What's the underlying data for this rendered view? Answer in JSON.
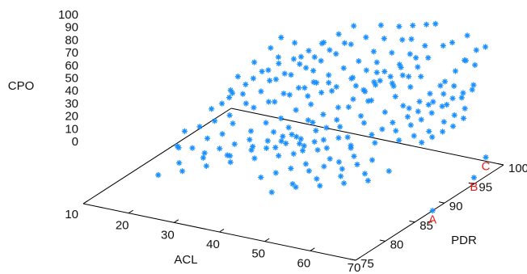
{
  "chart_data": {
    "type": "scatter",
    "title": "",
    "xlabel": "ACL",
    "ylabel": "PDR",
    "zlabel": "CPO",
    "xlim": [
      10,
      70
    ],
    "ylim": [
      75,
      100
    ],
    "zlim": [
      0,
      100
    ],
    "x_ticks": [
      "10",
      "20",
      "30",
      "40",
      "50",
      "60",
      "70"
    ],
    "y_ticks": [
      "75",
      "80",
      "85",
      "90",
      "95",
      "100"
    ],
    "z_ticks": [
      "0",
      "10",
      "20",
      "30",
      "40",
      "50",
      "60",
      "70",
      "80",
      "90",
      "100"
    ],
    "marker": "asterisk",
    "marker_color": "#1a8fff",
    "annotations": [
      {
        "text": "A",
        "color": "#e02020",
        "x": 70,
        "y": 88,
        "z": 0
      },
      {
        "text": "B",
        "color": "#e02020",
        "x": 70,
        "y": 95,
        "z": 5
      },
      {
        "text": "C",
        "color": "#e02020",
        "x": 70,
        "y": 97,
        "z": 15
      }
    ],
    "series": [
      {
        "points": [
          [
            18,
            85,
            20
          ],
          [
            18,
            86,
            30
          ],
          [
            19,
            84,
            25
          ],
          [
            20,
            87,
            32
          ],
          [
            20,
            89,
            40
          ],
          [
            21,
            85,
            22
          ],
          [
            21,
            90,
            42
          ],
          [
            22,
            88,
            35
          ],
          [
            22,
            91,
            48
          ],
          [
            23,
            86,
            28
          ],
          [
            23,
            92,
            45
          ],
          [
            24,
            89,
            38
          ],
          [
            24,
            93,
            55
          ],
          [
            25,
            87,
            30
          ],
          [
            25,
            91,
            42
          ],
          [
            26,
            94,
            60
          ],
          [
            26,
            88,
            36
          ],
          [
            27,
            92,
            50
          ],
          [
            27,
            95,
            63
          ],
          [
            28,
            90,
            44
          ],
          [
            28,
            86,
            18
          ],
          [
            29,
            93,
            58
          ],
          [
            29,
            96,
            65
          ],
          [
            30,
            91,
            47
          ],
          [
            30,
            88,
            33
          ],
          [
            31,
            94,
            60
          ],
          [
            31,
            97,
            70
          ],
          [
            32,
            92,
            52
          ],
          [
            32,
            89,
            38
          ],
          [
            33,
            95,
            64
          ],
          [
            33,
            98,
            75
          ],
          [
            34,
            93,
            55
          ],
          [
            34,
            90,
            40
          ],
          [
            35,
            96,
            68
          ],
          [
            35,
            99,
            80
          ],
          [
            36,
            94,
            58
          ],
          [
            36,
            91,
            45
          ],
          [
            37,
            97,
            72
          ],
          [
            37,
            100,
            85
          ],
          [
            38,
            95,
            62
          ],
          [
            38,
            92,
            48
          ],
          [
            39,
            98,
            78
          ],
          [
            39,
            93,
            55
          ],
          [
            40,
            96,
            66
          ],
          [
            40,
            90,
            43
          ],
          [
            41,
            99,
            82
          ],
          [
            41,
            94,
            58
          ],
          [
            42,
            97,
            70
          ],
          [
            42,
            91,
            46
          ],
          [
            43,
            100,
            90
          ],
          [
            43,
            95,
            63
          ],
          [
            44,
            98,
            76
          ],
          [
            44,
            92,
            50
          ],
          [
            45,
            96,
            68
          ],
          [
            45,
            99,
            84
          ],
          [
            46,
            93,
            55
          ],
          [
            46,
            97,
            72
          ],
          [
            47,
            100,
            92
          ],
          [
            47,
            94,
            60
          ],
          [
            48,
            98,
            78
          ],
          [
            48,
            95,
            64
          ],
          [
            49,
            99,
            86
          ],
          [
            49,
            96,
            70
          ],
          [
            50,
            100,
            95
          ],
          [
            50,
            93,
            57
          ],
          [
            51,
            97,
            74
          ],
          [
            51,
            99,
            88
          ],
          [
            52,
            95,
            66
          ],
          [
            52,
            98,
            80
          ],
          [
            53,
            100,
            98
          ],
          [
            53,
            96,
            70
          ],
          [
            54,
            94,
            60
          ],
          [
            54,
            99,
            85
          ],
          [
            55,
            97,
            75
          ],
          [
            55,
            100,
            100
          ],
          [
            56,
            95,
            66
          ],
          [
            56,
            98,
            80
          ],
          [
            57,
            96,
            72
          ],
          [
            57,
            93,
            58
          ],
          [
            58,
            99,
            88
          ],
          [
            20,
            80,
            15
          ],
          [
            22,
            82,
            20
          ],
          [
            24,
            81,
            18
          ],
          [
            26,
            83,
            24
          ],
          [
            28,
            82,
            22
          ],
          [
            30,
            84,
            26
          ],
          [
            32,
            83,
            25
          ],
          [
            34,
            85,
            30
          ],
          [
            36,
            84,
            28
          ],
          [
            38,
            86,
            32
          ],
          [
            40,
            85,
            30
          ],
          [
            42,
            87,
            35
          ],
          [
            44,
            86,
            34
          ],
          [
            46,
            88,
            38
          ],
          [
            48,
            87,
            36
          ],
          [
            50,
            89,
            40
          ],
          [
            52,
            88,
            38
          ],
          [
            54,
            90,
            42
          ],
          [
            56,
            89,
            40
          ],
          [
            58,
            91,
            45
          ],
          [
            60,
            90,
            42
          ],
          [
            60,
            92,
            48
          ],
          [
            61,
            93,
            50
          ],
          [
            62,
            94,
            53
          ],
          [
            62,
            91,
            44
          ],
          [
            63,
            95,
            56
          ],
          [
            64,
            96,
            60
          ],
          [
            64,
            92,
            46
          ],
          [
            65,
            97,
            62
          ],
          [
            66,
            98,
            66
          ],
          [
            60,
            95,
            55
          ],
          [
            61,
            97,
            68
          ],
          [
            62,
            98,
            74
          ],
          [
            63,
            99,
            80
          ],
          [
            64,
            100,
            86
          ],
          [
            65,
            99,
            78
          ],
          [
            66,
            100,
            90
          ],
          [
            60,
            99,
            92
          ],
          [
            62,
            100,
            96
          ],
          [
            64,
            98,
            84
          ],
          [
            25,
            95,
            48
          ],
          [
            27,
            96,
            52
          ],
          [
            29,
            97,
            58
          ],
          [
            31,
            98,
            62
          ],
          [
            33,
            99,
            66
          ],
          [
            35,
            100,
            70
          ],
          [
            28,
            98,
            60
          ],
          [
            30,
            100,
            66
          ],
          [
            32,
            97,
            55
          ],
          [
            34,
            96,
            50
          ],
          [
            45,
            80,
            20
          ],
          [
            47,
            82,
            22
          ],
          [
            49,
            81,
            24
          ],
          [
            51,
            83,
            26
          ],
          [
            53,
            82,
            25
          ],
          [
            55,
            84,
            28
          ],
          [
            57,
            83,
            27
          ],
          [
            59,
            85,
            30
          ],
          [
            61,
            84,
            29
          ],
          [
            63,
            86,
            32
          ],
          [
            35,
            88,
            36
          ],
          [
            37,
            89,
            38
          ],
          [
            39,
            88,
            37
          ],
          [
            41,
            90,
            42
          ],
          [
            43,
            89,
            40
          ],
          [
            45,
            91,
            44
          ],
          [
            47,
            90,
            43
          ],
          [
            49,
            92,
            47
          ],
          [
            51,
            91,
            46
          ],
          [
            53,
            93,
            50
          ],
          [
            36,
            86,
            30
          ],
          [
            38,
            87,
            34
          ],
          [
            40,
            88,
            36
          ],
          [
            42,
            86,
            30
          ],
          [
            44,
            88,
            35
          ],
          [
            46,
            87,
            33
          ],
          [
            48,
            89,
            38
          ],
          [
            50,
            86,
            32
          ],
          [
            52,
            88,
            36
          ],
          [
            54,
            87,
            34
          ],
          [
            30,
            92,
            44
          ],
          [
            32,
            93,
            48
          ],
          [
            34,
            94,
            52
          ],
          [
            36,
            93,
            50
          ],
          [
            38,
            95,
            56
          ],
          [
            40,
            94,
            54
          ],
          [
            42,
            96,
            60
          ],
          [
            44,
            95,
            58
          ],
          [
            46,
            97,
            64
          ],
          [
            48,
            96,
            62
          ],
          [
            20,
            92,
            40
          ],
          [
            21,
            94,
            45
          ],
          [
            22,
            96,
            50
          ],
          [
            23,
            98,
            56
          ],
          [
            24,
            100,
            62
          ],
          [
            19,
            97,
            52
          ],
          [
            20,
            99,
            58
          ],
          [
            21,
            100,
            64
          ],
          [
            18,
            95,
            46
          ],
          [
            19,
            93,
            42
          ],
          [
            25,
            84,
            24
          ],
          [
            27,
            85,
            26
          ],
          [
            29,
            86,
            28
          ],
          [
            31,
            87,
            30
          ],
          [
            33,
            86,
            29
          ],
          [
            35,
            87,
            32
          ],
          [
            37,
            88,
            34
          ],
          [
            39,
            87,
            33
          ],
          [
            41,
            88,
            35
          ],
          [
            43,
            87,
            34
          ],
          [
            44,
            90,
            40
          ],
          [
            45,
            93,
            48
          ],
          [
            46,
            95,
            55
          ],
          [
            47,
            96,
            58
          ],
          [
            48,
            94,
            52
          ],
          [
            49,
            97,
            63
          ],
          [
            50,
            98,
            68
          ],
          [
            51,
            96,
            60
          ],
          [
            52,
            99,
            74
          ],
          [
            53,
            97,
            66
          ],
          [
            55,
            91,
            44
          ],
          [
            56,
            92,
            47
          ],
          [
            57,
            94,
            53
          ],
          [
            58,
            95,
            56
          ],
          [
            59,
            96,
            60
          ],
          [
            60,
            97,
            64
          ],
          [
            61,
            95,
            58
          ],
          [
            62,
            96,
            62
          ],
          [
            63,
            97,
            66
          ],
          [
            64,
            95,
            58
          ],
          [
            40,
            82,
            22
          ],
          [
            42,
            83,
            24
          ],
          [
            44,
            84,
            26
          ],
          [
            46,
            85,
            28
          ],
          [
            48,
            84,
            27
          ],
          [
            50,
            85,
            29
          ],
          [
            52,
            86,
            31
          ],
          [
            54,
            85,
            30
          ],
          [
            56,
            86,
            32
          ],
          [
            58,
            87,
            34
          ],
          [
            66,
            93,
            52
          ],
          [
            67,
            94,
            55
          ],
          [
            68,
            95,
            58
          ],
          [
            66,
            91,
            46
          ],
          [
            67,
            92,
            48
          ],
          [
            68,
            93,
            50
          ],
          [
            69,
            94,
            54
          ],
          [
            65,
            90,
            44
          ],
          [
            66,
            96,
            62
          ],
          [
            67,
            97,
            66
          ],
          [
            70,
            88,
            0
          ],
          [
            70,
            95,
            5
          ],
          [
            70,
            97,
            15
          ],
          [
            58,
            93,
            50
          ],
          [
            59,
            94,
            52
          ]
        ]
      }
    ]
  }
}
